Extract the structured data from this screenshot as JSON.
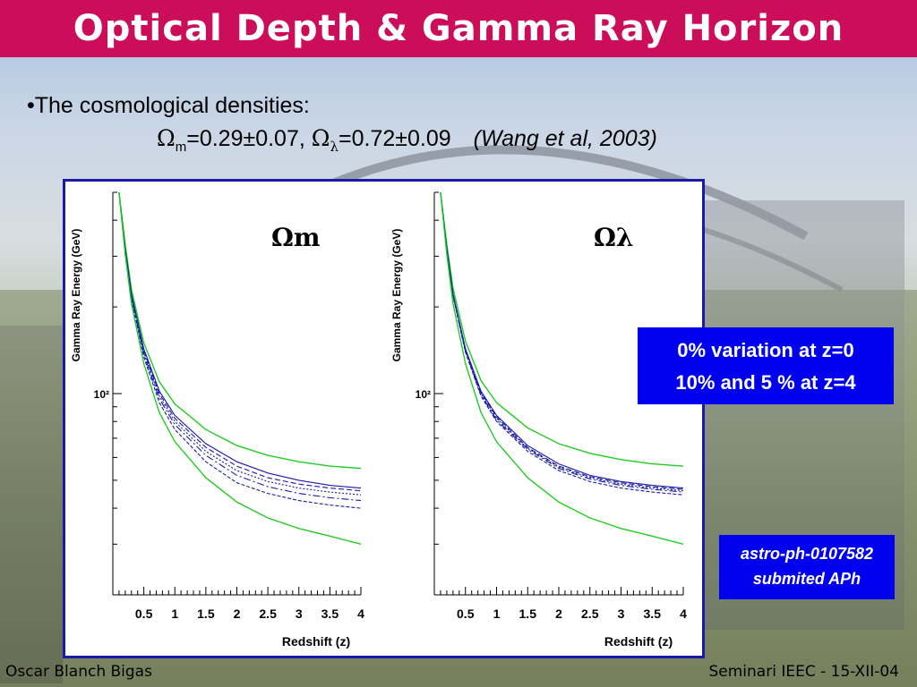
{
  "header": {
    "title": "Optical Depth & Gamma Ray Horizon"
  },
  "body": {
    "bullet": "•The cosmological densities:",
    "omega_symbol": "Ω",
    "omega_m_sub": "m",
    "omega_m_value": "=0.29±0.07,",
    "omega_l_sub": "λ",
    "omega_l_value": "=0.72±0.09",
    "citation": "(Wang et al, 2003)"
  },
  "callouts": {
    "variation_line1": "0% variation at z=0",
    "variation_line2": "10% and 5 % at z=4",
    "ref_line1": "astro-ph-0107582",
    "ref_line2": "submited  APh"
  },
  "footer": {
    "author": "Oscar Blanch Bigas",
    "event": "Seminari IEEC - 15-XII-04"
  },
  "colors": {
    "title_bar": "#cc0d59",
    "callout_box": "#0000ee",
    "plot_frame": "#1a1aa8",
    "green_curve": "#22cc22",
    "blue_curve": "#1a1aa8"
  },
  "chart_data": [
    {
      "type": "line",
      "panel_label": "Ωm",
      "xlabel": "Redshift (z)",
      "ylabel": "Gamma Ray Energy (GeV)",
      "xlim": [
        0,
        4
      ],
      "yscale": "log",
      "ylim": [
        20,
        500
      ],
      "x_ticks": [
        "0.5",
        "1",
        "1.5",
        "2",
        "2.5",
        "3",
        "3.5",
        "4"
      ],
      "y_tick_label": "10²",
      "x": [
        0.1,
        0.2,
        0.3,
        0.5,
        0.75,
        1.0,
        1.5,
        2.0,
        2.5,
        3.0,
        3.5,
        4.0
      ],
      "series": [
        {
          "style": "green",
          "values": [
            500,
            330,
            230,
            150,
            110,
            92,
            75,
            66,
            61,
            58,
            56,
            55
          ]
        },
        {
          "style": "blue",
          "values": [
            500,
            320,
            222,
            143,
            102,
            84,
            67,
            58,
            53,
            50,
            48,
            47
          ]
        },
        {
          "style": "blue",
          "values": [
            500,
            318,
            220,
            141,
            100,
            82,
            65,
            56,
            51,
            48.5,
            47,
            46
          ]
        },
        {
          "style": "blue",
          "values": [
            500,
            316,
            218,
            139,
            98,
            80,
            63,
            54,
            49.5,
            47,
            45.5,
            44.5
          ]
        },
        {
          "style": "blue",
          "values": [
            500,
            314,
            216,
            137,
            96,
            78,
            61,
            52,
            47.5,
            45,
            43.5,
            42.5
          ]
        },
        {
          "style": "blue",
          "values": [
            500,
            312,
            213,
            134,
            93,
            75,
            58,
            49,
            45,
            42.5,
            41,
            40
          ]
        },
        {
          "style": "green",
          "values": [
            500,
            305,
            205,
            127,
            86,
            68,
            51,
            42,
            37,
            34,
            32,
            30
          ]
        }
      ]
    },
    {
      "type": "line",
      "panel_label": "Ωλ",
      "xlabel": "Redshift (z)",
      "ylabel": "Gamma Ray Energy (GeV)",
      "xlim": [
        0,
        4
      ],
      "yscale": "log",
      "ylim": [
        20,
        500
      ],
      "x_ticks": [
        "0.5",
        "1",
        "1.5",
        "2",
        "2.5",
        "3",
        "3.5",
        "4"
      ],
      "y_tick_label": "10²",
      "x": [
        0.1,
        0.2,
        0.3,
        0.5,
        0.75,
        1.0,
        1.5,
        2.0,
        2.5,
        3.0,
        3.5,
        4.0
      ],
      "series": [
        {
          "style": "green",
          "values": [
            500,
            330,
            232,
            152,
            111,
            93,
            76,
            67,
            62,
            59,
            57,
            56
          ]
        },
        {
          "style": "blue",
          "values": [
            500,
            320,
            222,
            143,
            102,
            84,
            66,
            57,
            52,
            49.5,
            48,
            47
          ]
        },
        {
          "style": "blue",
          "values": [
            500,
            319,
            221,
            142,
            101,
            83,
            65,
            56,
            51.5,
            49,
            47.5,
            46.5
          ]
        },
        {
          "style": "blue",
          "values": [
            500,
            318,
            220,
            141,
            100,
            82,
            64.5,
            55.5,
            51,
            48.5,
            47,
            46
          ]
        },
        {
          "style": "blue",
          "values": [
            500,
            317,
            219,
            140,
            99,
            81,
            64,
            55,
            50.5,
            48,
            46.5,
            45.5
          ]
        },
        {
          "style": "blue",
          "values": [
            500,
            316,
            218,
            139,
            98,
            80,
            63,
            54,
            49.5,
            47,
            45.5,
            44.5
          ]
        },
        {
          "style": "green",
          "values": [
            500,
            305,
            205,
            127,
            86,
            68,
            51,
            42,
            37,
            34,
            32,
            30
          ]
        }
      ]
    }
  ]
}
